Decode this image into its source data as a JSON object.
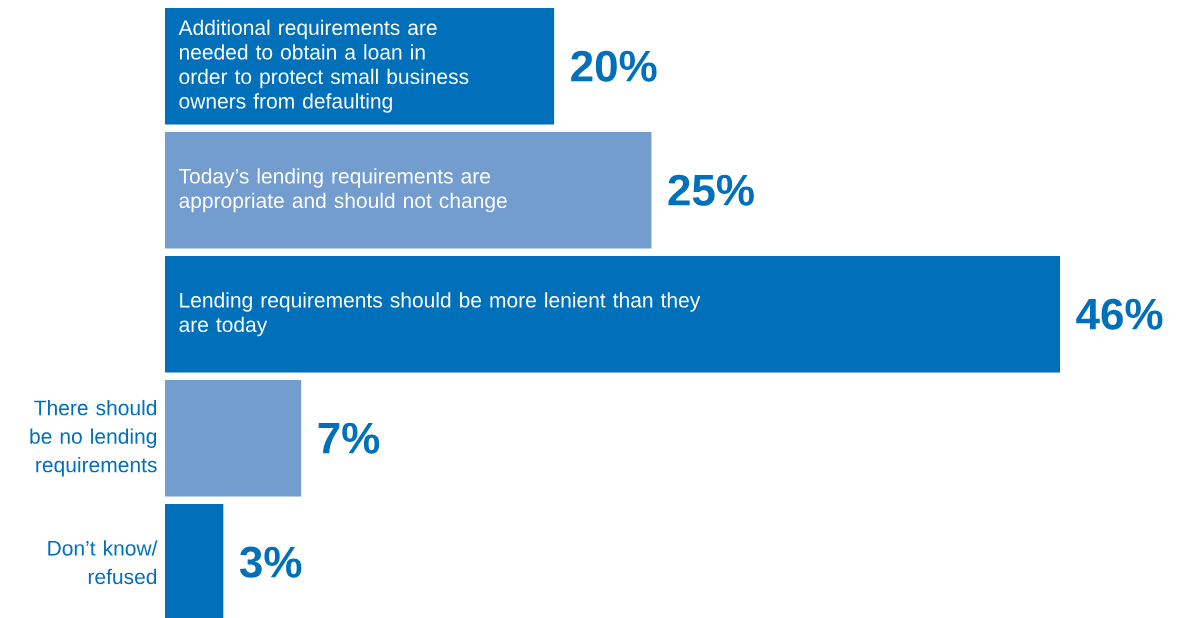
{
  "chart_data": {
    "type": "bar",
    "orientation": "horizontal",
    "categories": [
      "Additional requirements are needed to obtain a loan in order to protect small business owners from defaulting",
      "Today’s lending requirements are appropriate and should not change",
      "Lending requirements should be more lenient than they are today",
      "There should be no lending requirements",
      "Don’t know/ refused"
    ],
    "values": [
      20,
      25,
      46,
      7,
      3
    ],
    "colors": [
      "#0070ba",
      "#739ccf",
      "#0070ba",
      "#739ccf",
      "#0070ba"
    ],
    "value_labels": [
      "20%",
      "25%",
      "46%",
      "7%",
      "3%"
    ],
    "tick_labels": false
  }
}
